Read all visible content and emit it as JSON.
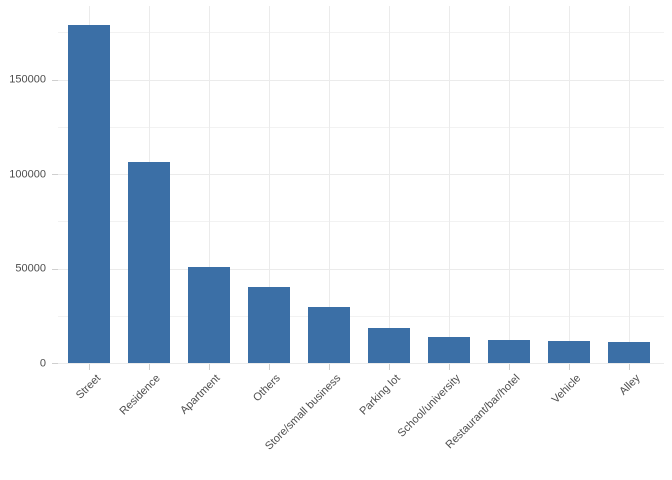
{
  "chart_data": {
    "type": "bar",
    "title": "",
    "xlabel": "",
    "ylabel": "",
    "categories": [
      "Street",
      "Residence",
      "Apartment",
      "Others",
      "Store/small business",
      "Parking lot",
      "School/university",
      "Restaurant/bar/hotel",
      "Vehicle",
      "Alley"
    ],
    "values": [
      179000,
      106500,
      51000,
      40000,
      29500,
      18500,
      14000,
      12200,
      11500,
      11100
    ],
    "ylim": [
      0,
      189000
    ],
    "y_ticks": [
      0,
      50000,
      100000,
      150000
    ],
    "y_tick_labels": [
      "0",
      "50000",
      "100000",
      "150000"
    ],
    "y_minor_ticks": [
      25000,
      75000,
      125000,
      175000
    ],
    "grid": true,
    "legend": "none",
    "x_tick_angle": -45,
    "bar_color": "#3B6FA6"
  },
  "style": {
    "background": "#FFFFFF",
    "grid_major": "#EBEBEB",
    "grid_minor": "#F2F2F2",
    "tick_mark_color": "#CFCFCF",
    "axis_text_color": "#4D4D4D"
  }
}
